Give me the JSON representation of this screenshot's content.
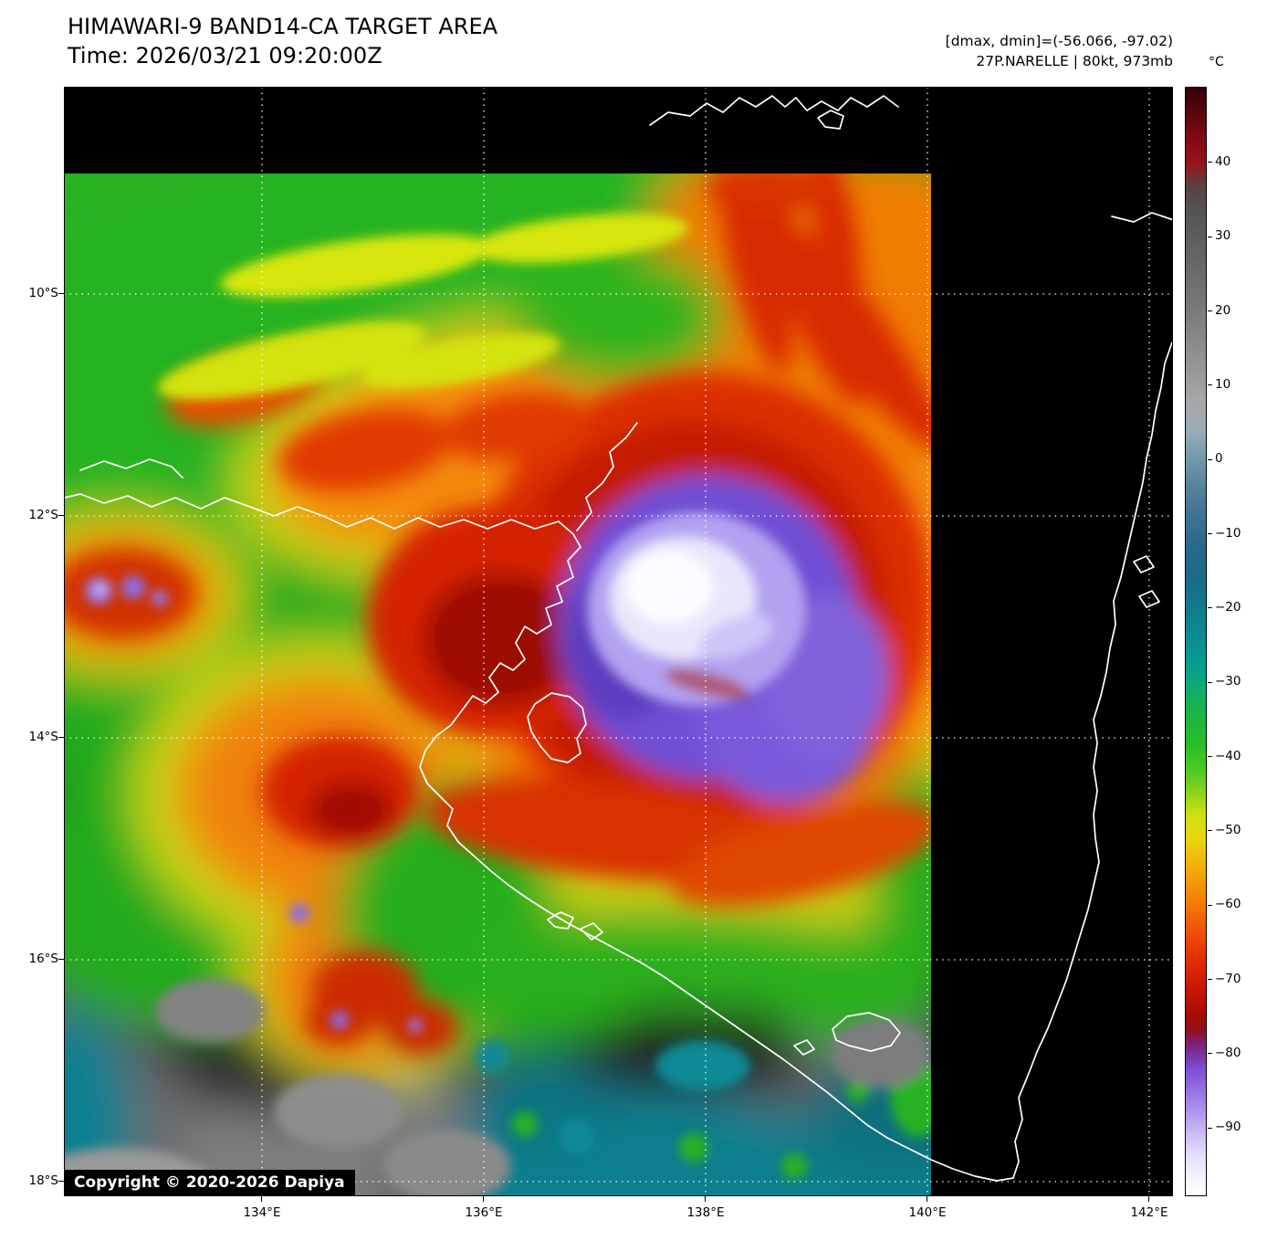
{
  "header": {
    "title": "HIMAWARI-9 BAND14-CA TARGET AREA",
    "time": "Time: 2026/03/21 09:20:00Z",
    "dmax_dmin": "[dmax, dmin]=(-56.066, -97.02)",
    "storm": "27P.NARELLE | 80kt, 973mb"
  },
  "footer": {
    "copyright": "Copyright © 2020-2026 Dapiya"
  },
  "axes": {
    "lon_ticks": [
      {
        "label": "134°E",
        "value": 134
      },
      {
        "label": "136°E",
        "value": 136
      },
      {
        "label": "138°E",
        "value": 138
      },
      {
        "label": "140°E",
        "value": 140
      },
      {
        "label": "142°E",
        "value": 142
      }
    ],
    "lat_ticks": [
      {
        "label": "10°S",
        "value": 10
      },
      {
        "label": "12°S",
        "value": 12
      },
      {
        "label": "14°S",
        "value": 14
      },
      {
        "label": "16°S",
        "value": 16
      },
      {
        "label": "18°S",
        "value": 18
      }
    ]
  },
  "colorbar": {
    "unit": "°C",
    "ticks": [
      {
        "label": "40",
        "value": 40
      },
      {
        "label": "30",
        "value": 30
      },
      {
        "label": "20",
        "value": 20
      },
      {
        "label": "10",
        "value": 10
      },
      {
        "label": "0",
        "value": 0
      },
      {
        "label": "−10",
        "value": -10
      },
      {
        "label": "−20",
        "value": -20
      },
      {
        "label": "−30",
        "value": -30
      },
      {
        "label": "−40",
        "value": -40
      },
      {
        "label": "−50",
        "value": -50
      },
      {
        "label": "−60",
        "value": -60
      },
      {
        "label": "−70",
        "value": -70
      },
      {
        "label": "−80",
        "value": -80
      },
      {
        "label": "−90",
        "value": -90
      }
    ],
    "gradient_stops": [
      {
        "value": 50,
        "color": "#330008"
      },
      {
        "value": 44,
        "color": "#7c0a12"
      },
      {
        "value": 40,
        "color": "#96151a"
      },
      {
        "value": 37,
        "color": "#5c4040"
      },
      {
        "value": 34,
        "color": "#525252"
      },
      {
        "value": 28,
        "color": "#636363"
      },
      {
        "value": 20,
        "color": "#7b7b7b"
      },
      {
        "value": 12,
        "color": "#989898"
      },
      {
        "value": 8,
        "color": "#a7a7a7"
      },
      {
        "value": 4,
        "color": "#9aacb6"
      },
      {
        "value": 0,
        "color": "#7297ab"
      },
      {
        "value": -4,
        "color": "#54809c"
      },
      {
        "value": -8,
        "color": "#3b7193"
      },
      {
        "value": -12,
        "color": "#28688c"
      },
      {
        "value": -16,
        "color": "#1a6b88"
      },
      {
        "value": -20,
        "color": "#107a8e"
      },
      {
        "value": -24,
        "color": "#0a8c92"
      },
      {
        "value": -28,
        "color": "#079f8d"
      },
      {
        "value": -31,
        "color": "#12ab6e"
      },
      {
        "value": -34,
        "color": "#1cb348"
      },
      {
        "value": -38,
        "color": "#27bd27"
      },
      {
        "value": -42,
        "color": "#4fc922"
      },
      {
        "value": -45,
        "color": "#8ed51c"
      },
      {
        "value": -48,
        "color": "#cfe013"
      },
      {
        "value": -51,
        "color": "#e8d60f"
      },
      {
        "value": -55,
        "color": "#f2ae0a"
      },
      {
        "value": -59,
        "color": "#f58306"
      },
      {
        "value": -63,
        "color": "#f15804"
      },
      {
        "value": -67,
        "color": "#e63102"
      },
      {
        "value": -71,
        "color": "#cc1701"
      },
      {
        "value": -75,
        "color": "#a60d01"
      },
      {
        "value": -77,
        "color": "#8c1120"
      },
      {
        "value": -79,
        "color": "#7a2380"
      },
      {
        "value": -82,
        "color": "#7c4cd2"
      },
      {
        "value": -85,
        "color": "#9571e3"
      },
      {
        "value": -88,
        "color": "#b095ee"
      },
      {
        "value": -91,
        "color": "#ccbdf5"
      },
      {
        "value": -94,
        "color": "#e7e1fb"
      },
      {
        "value": -99,
        "color": "#ffffff"
      }
    ]
  }
}
